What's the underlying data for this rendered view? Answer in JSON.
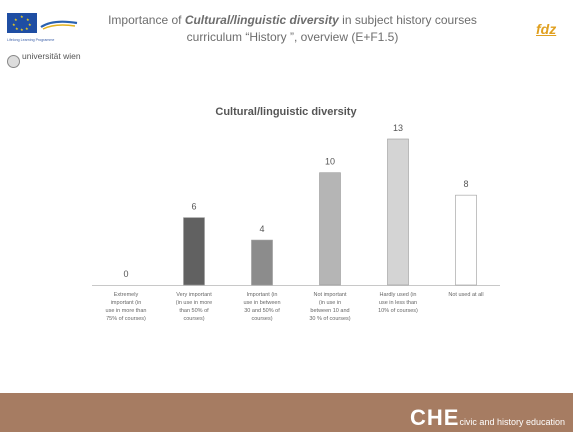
{
  "header": {
    "title_prefix": "Importance of ",
    "title_emphasis": "Cultural/linguistic diversity",
    "title_suffix": " in subject history courses",
    "title_line2": "curriculum “History ”, overview (E+F1.5)",
    "eu_program_text": "Lifelong Learning Programme",
    "university": "universität wien",
    "fdz_logo": "fdz"
  },
  "footer": {
    "che_big": "CHE",
    "che_small": "civic and history education"
  },
  "colors": {
    "footer": "#a67c62",
    "fdz": "#e0a020",
    "eu_blue": "#1f4ea3"
  },
  "chart_data": {
    "type": "bar",
    "title": "Cultural/linguistic diversity",
    "categories": [
      [
        "Extremely",
        "important (in",
        "use in more than",
        "75% of courses)"
      ],
      [
        "Very important",
        "(in use in more",
        "than 50% of",
        "courses)"
      ],
      [
        "Important (in",
        "use in between",
        "30 and 50% of",
        "courses)"
      ],
      [
        "Not important",
        "(in use in",
        "between 10 and",
        "30 % of courses)"
      ],
      [
        "Hardly used (in",
        "use in less than",
        "10% of courses)"
      ],
      [
        "Not used at all"
      ]
    ],
    "values": [
      0,
      6,
      4,
      10,
      13,
      8
    ],
    "bar_colors": [
      "#404040",
      "#616161",
      "#8c8c8c",
      "#b5b5b5",
      "#d4d4d4",
      "#ffffff"
    ],
    "ylim": [
      0,
      13
    ],
    "grid": false,
    "legend": "none"
  }
}
